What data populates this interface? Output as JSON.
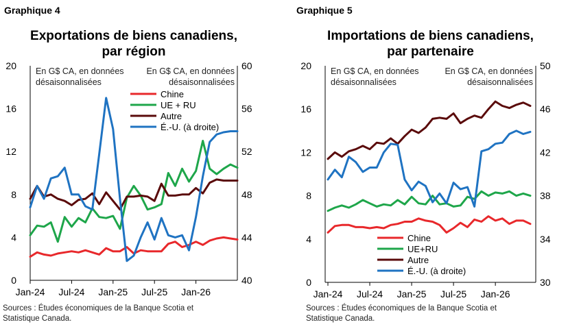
{
  "chart_data": [
    {
      "type": "line",
      "label": "Graphique 4",
      "title_lines": [
        "Exportations de biens canadiens,",
        "par région"
      ],
      "unit_note_left": [
        "En G$ CA, en données",
        "désaisonnalisées"
      ],
      "unit_note_right": [
        "En G$ CA, en données",
        "désaisonnalisées"
      ],
      "x_ticks": [
        "Jan-24",
        "Jul-24",
        "Jan-25",
        "Jul-25",
        "Jan-26"
      ],
      "ylim_left": [
        0,
        20
      ],
      "yticks_left": [
        0,
        4,
        8,
        12,
        16,
        20
      ],
      "ylim_right": [
        40,
        60
      ],
      "yticks_right": [
        40,
        44,
        48,
        52,
        56,
        60
      ],
      "n_points": 31,
      "series": [
        {
          "name": "Chine",
          "axis": "left",
          "color": "#e8282b",
          "values": [
            2.2,
            2.6,
            2.4,
            2.3,
            2.5,
            2.6,
            2.7,
            2.6,
            2.8,
            2.6,
            2.4,
            3.0,
            2.7,
            2.7,
            3.1,
            2.5,
            2.8,
            2.7,
            2.7,
            2.7,
            3.4,
            3.6,
            3.1,
            3.3,
            3.6,
            3.3,
            3.7,
            3.9,
            4.0,
            3.9,
            3.8
          ]
        },
        {
          "name": "UE + RU",
          "axis": "left",
          "color": "#1ea64a",
          "values": [
            4.2,
            5.1,
            5.0,
            5.4,
            3.6,
            5.9,
            5.0,
            5.8,
            5.4,
            6.7,
            5.9,
            5.8,
            6.0,
            4.8,
            7.7,
            8.8,
            7.9,
            6.6,
            6.8,
            7.1,
            10.0,
            8.8,
            10.4,
            9.2,
            10.2,
            13.0,
            10.4,
            9.9,
            10.4,
            10.8,
            10.5
          ]
        },
        {
          "name": "Autre",
          "axis": "left",
          "color": "#5a0a0a",
          "values": [
            7.6,
            8.8,
            7.8,
            8.0,
            7.6,
            7.4,
            7.0,
            7.5,
            7.6,
            8.1,
            7.1,
            8.2,
            7.4,
            6.6,
            7.8,
            7.8,
            7.9,
            7.8,
            7.4,
            9.0,
            7.9,
            7.9,
            8.0,
            8.0,
            8.6,
            8.1,
            9.1,
            9.4,
            9.3,
            9.3,
            9.3
          ]
        },
        {
          "name": "É.-U. (à droite)",
          "axis": "right",
          "color": "#1f73c2",
          "values": [
            46.8,
            48.8,
            47.6,
            49.5,
            49.7,
            50.5,
            48.0,
            48.0,
            46.9,
            46.6,
            51.8,
            57.0,
            54.1,
            47.6,
            41.8,
            42.3,
            44.0,
            45.4,
            43.8,
            45.8,
            44.2,
            44.0,
            44.2,
            42.8,
            45.9,
            49.7,
            52.9,
            53.6,
            53.8,
            53.9,
            53.9
          ]
        }
      ],
      "legend_position": "inside-upper-center",
      "grid": false
    },
    {
      "type": "line",
      "label": "Graphique 5",
      "title_lines": [
        "Importations de biens canadiens,",
        "par partenaire"
      ],
      "unit_note_left": [
        "En G$ CA, en données",
        "désaisonnalisées"
      ],
      "unit_note_right": [
        "En G$ CA, en données",
        "désaisonnalisées"
      ],
      "x_ticks": [
        "Jan-24",
        "Jul-24",
        "Jan-25",
        "Jul-25",
        "Jan-26"
      ],
      "ylim_left": [
        0,
        20
      ],
      "yticks_left": [
        0,
        4,
        8,
        12,
        16,
        20
      ],
      "ylim_right": [
        30,
        50
      ],
      "yticks_right": [
        30,
        34,
        38,
        42,
        46,
        50
      ],
      "n_points": 30,
      "series": [
        {
          "name": "Chine",
          "axis": "left",
          "color": "#e8282b",
          "values": [
            4.6,
            5.2,
            5.3,
            5.3,
            5.1,
            5.1,
            5.0,
            5.1,
            5.0,
            5.3,
            5.4,
            5.6,
            5.6,
            5.9,
            5.7,
            5.6,
            5.3,
            4.6,
            5.0,
            5.5,
            5.1,
            5.8,
            5.6,
            6.1,
            5.7,
            5.9,
            5.4,
            5.7,
            5.7,
            5.4
          ]
        },
        {
          "name": "UE+RU",
          "axis": "left",
          "color": "#1ea64a",
          "values": [
            6.6,
            6.9,
            7.1,
            6.9,
            7.2,
            7.6,
            7.3,
            7.0,
            7.2,
            7.1,
            7.6,
            7.2,
            7.9,
            7.3,
            7.2,
            8.0,
            7.2,
            7.3,
            7.0,
            7.1,
            7.9,
            7.7,
            8.4,
            8.0,
            8.3,
            8.2,
            8.4,
            8.0,
            8.2,
            8.0
          ]
        },
        {
          "name": "Autre",
          "axis": "left",
          "color": "#5a0a0a",
          "values": [
            11.4,
            12.0,
            11.6,
            12.1,
            12.3,
            12.6,
            12.3,
            12.9,
            12.8,
            13.3,
            12.8,
            13.5,
            14.1,
            13.8,
            14.3,
            15.1,
            15.2,
            15.1,
            15.6,
            14.7,
            15.1,
            15.4,
            15.2,
            16.0,
            16.7,
            16.3,
            16.1,
            16.4,
            16.6,
            16.3
          ]
        },
        {
          "name": "É.-U. (à droite)",
          "axis": "right",
          "color": "#1f73c2",
          "values": [
            39.5,
            40.4,
            39.7,
            41.6,
            41.1,
            40.2,
            40.6,
            40.6,
            42.0,
            42.8,
            42.7,
            39.5,
            38.5,
            39.3,
            38.9,
            37.4,
            38.2,
            37.3,
            39.2,
            38.6,
            38.8,
            37.0,
            42.1,
            42.3,
            42.8,
            42.9,
            43.7,
            44.0,
            43.7,
            43.9
          ]
        }
      ],
      "legend_position": "inside-lower-center",
      "grid": false
    }
  ],
  "sources": [
    "Sources : Études économiques de la Banque Scotia et",
    "Statistique Canada."
  ]
}
